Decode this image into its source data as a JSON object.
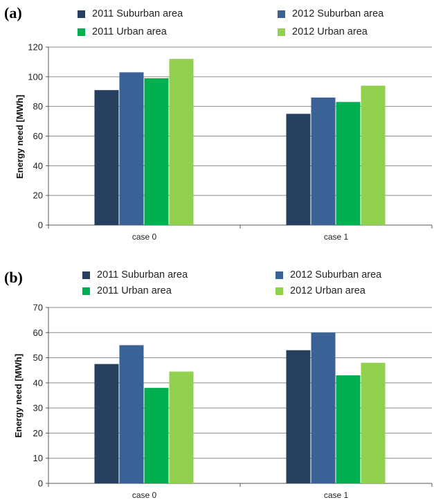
{
  "panels": [
    {
      "label": "(a)"
    },
    {
      "label": "(b)"
    }
  ],
  "colors": {
    "2011 Suburban area": "#263f5e",
    "2012 Suburban area": "#3a6296",
    "2011 Urban area": "#00b050",
    "2012 Urban area": "#92d050"
  },
  "chart_data": [
    {
      "type": "bar",
      "categories": [
        "case 0",
        "case 1"
      ],
      "series": [
        {
          "name": "2011 Suburban area",
          "values": [
            91,
            75
          ]
        },
        {
          "name": "2012 Suburban area",
          "values": [
            103,
            86
          ]
        },
        {
          "name": "2011 Urban area",
          "values": [
            99,
            83
          ]
        },
        {
          "name": "2012 Urban area",
          "values": [
            112,
            94
          ]
        }
      ],
      "ylabel": "Energy need [MWh]",
      "ylim": [
        0,
        120
      ],
      "yticks": [
        0,
        20,
        40,
        60,
        80,
        100,
        120
      ],
      "grid": true,
      "legend": "top"
    },
    {
      "type": "bar",
      "categories": [
        "case 0",
        "case 1"
      ],
      "series": [
        {
          "name": "2011 Suburban area",
          "values": [
            47.5,
            53
          ]
        },
        {
          "name": "2012 Suburban area",
          "values": [
            55,
            60
          ]
        },
        {
          "name": "2011 Urban area",
          "values": [
            38,
            43
          ]
        },
        {
          "name": "2012 Urban area",
          "values": [
            44.5,
            48
          ]
        }
      ],
      "ylabel": "Energy need [MWh]",
      "ylim": [
        0,
        70
      ],
      "yticks": [
        0,
        10,
        20,
        30,
        40,
        50,
        60,
        70
      ],
      "grid": true,
      "legend": "top"
    }
  ]
}
